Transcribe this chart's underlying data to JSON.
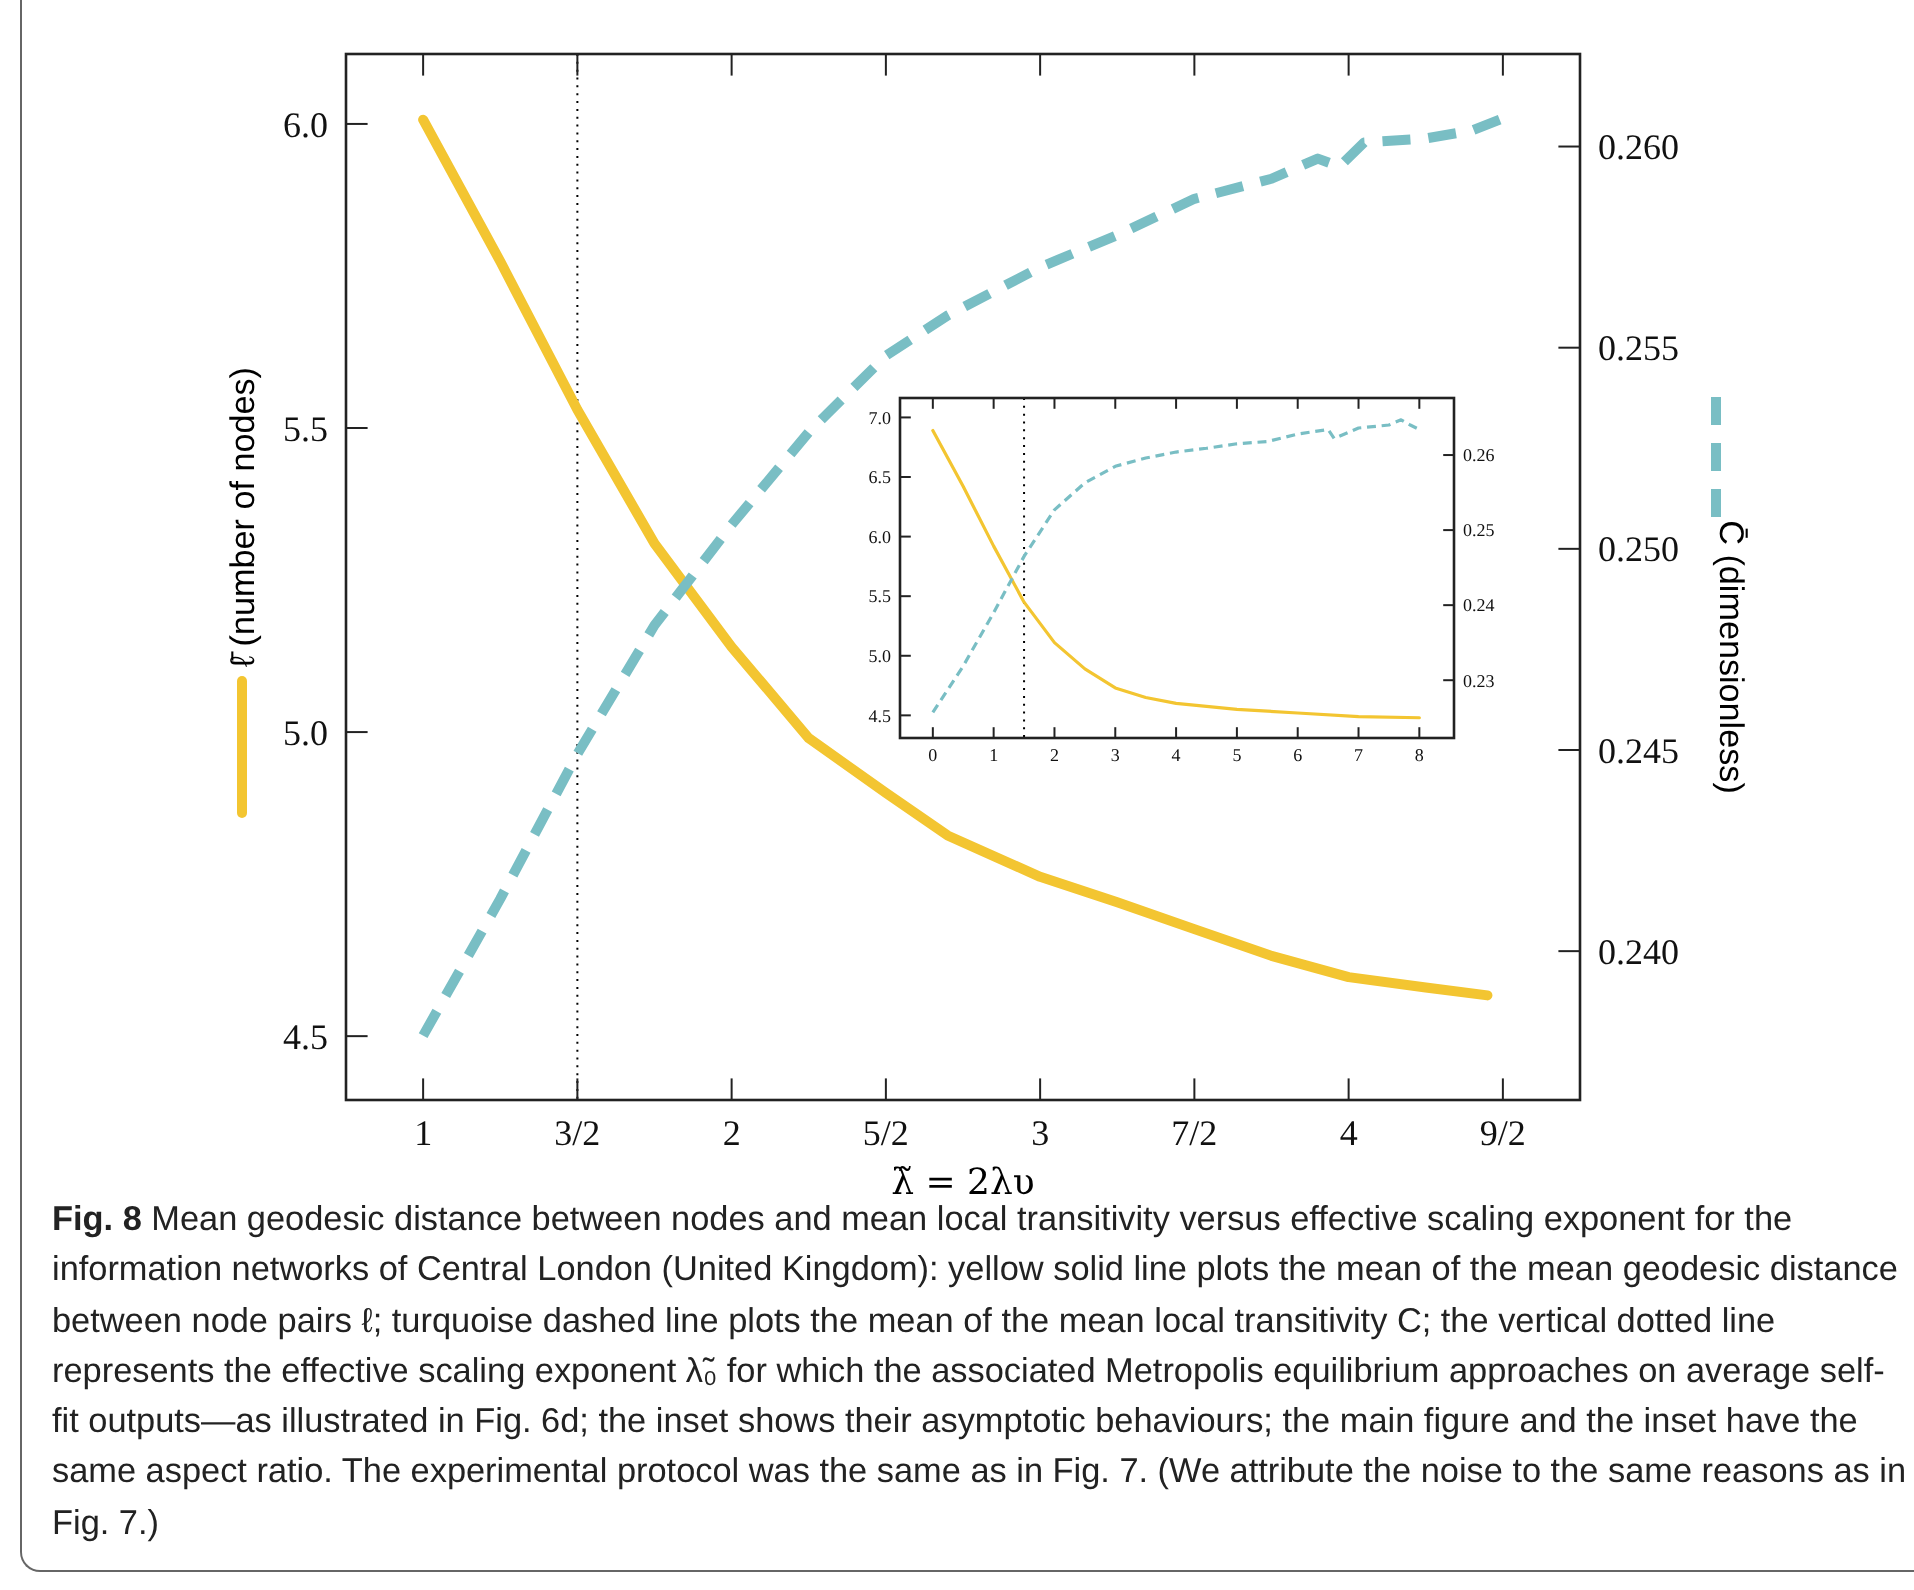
{
  "chart_data": [
    {
      "type": "line",
      "xlabel": "λ̃ = 2λυ",
      "ylabel": "ℓ̄ (number of nodes)",
      "y2label": "C̄ (dimensionless)",
      "xlim": [
        0.75,
        4.75
      ],
      "ylim": [
        4.395,
        6.115
      ],
      "y2lim": [
        0.2363,
        0.2623
      ],
      "xticks": [
        1,
        {
          "value": 1.5,
          "label": "3/2"
        },
        2,
        {
          "value": 2.5,
          "label": "5/2"
        },
        3,
        {
          "value": 3.5,
          "label": "7/2"
        },
        4,
        {
          "value": 4.5,
          "label": "9/2"
        }
      ],
      "yticks": [
        {
          "value": 4.5,
          "label": "4.5"
        },
        {
          "value": 5,
          "label": "5.0"
        },
        {
          "value": 5.5,
          "label": "5.5"
        },
        {
          "value": 6,
          "label": "6.0"
        }
      ],
      "y2ticks": [
        {
          "value": 0.24,
          "label": "0.240"
        },
        {
          "value": 0.245,
          "label": "0.245"
        },
        {
          "value": 0.25,
          "label": "0.250"
        },
        {
          "value": 0.255,
          "label": "0.255"
        },
        {
          "value": 0.26,
          "label": "0.260"
        }
      ],
      "series": [
        {
          "color": "#f3c531",
          "line_style": "solid",
          "x": [
            1,
            1.25,
            1.5,
            1.75,
            2,
            2.25,
            2.5,
            2.7,
            3,
            3.25,
            3.5,
            3.75,
            4,
            4.25,
            4.45
          ],
          "values": [
            6.007,
            5.774,
            5.53,
            5.31,
            5.14,
            4.99,
            4.9,
            4.83,
            4.762,
            4.72,
            4.676,
            4.632,
            4.597,
            4.58,
            4.567
          ]
        },
        {
          "color": "#79bec4",
          "line_style": "dashed",
          "axis": "y2",
          "x": [
            1,
            1.25,
            1.5,
            1.75,
            2,
            2.25,
            2.5,
            2.7,
            2.85,
            3,
            3.25,
            3.5,
            3.75,
            3.9,
            3.97,
            4.05,
            4.25,
            4.4,
            4.5
          ],
          "values": [
            0.2379,
            0.2413,
            0.2449,
            0.2481,
            0.2506,
            0.2529,
            0.2548,
            0.2558,
            0.2564,
            0.257,
            0.2578,
            0.2587,
            0.2592,
            0.2597,
            0.2595,
            0.2601,
            0.2602,
            0.2604,
            0.2607
          ]
        }
      ],
      "ref_lines": [
        {
          "axis": "x",
          "value": 1.5,
          "color": "#000000",
          "line_style": "dotted"
        }
      ],
      "annotations": [
        "Fig. 8 Mean geodesic distance between nodes and mean local transitivity versus effective scaling exponent for the information networks of Central London (United Kingdom): yellow solid line plots the mean of the mean geodesic distance between node pairs ℓ; turquoise dashed line plots the mean of the mean local transitivity C; the vertical dotted line represents the effective scaling exponent λ̃₀ for which the associated Metropolis equilibrium approaches on average self-fit outputs—as illustrated in Fig. 6d; the inset shows their asymptotic behaviours; the main figure and the inset have the same aspect ratio. The experimental protocol was the same as in Fig. 7. (We attribute the noise to the same reasons as in Fig. 7.)"
      ]
    },
    {
      "type": "line",
      "xlim": [
        -0.54,
        8.57
      ],
      "ylim": [
        4.31,
        7.163
      ],
      "y2lim": [
        0.2223,
        0.2676
      ],
      "xticks": [
        0,
        1,
        2,
        3,
        4,
        5,
        6,
        7,
        8
      ],
      "yticks": [
        {
          "value": 4.5,
          "label": "4.5"
        },
        {
          "value": 5,
          "label": "5.0"
        },
        {
          "value": 5.5,
          "label": "5.5"
        },
        {
          "value": 6,
          "label": "6.0"
        },
        {
          "value": 6.5,
          "label": "6.5"
        },
        {
          "value": 7,
          "label": "7.0"
        }
      ],
      "y2ticks": [
        0.23,
        0.24,
        0.25,
        0.26
      ],
      "series": [
        {
          "color": "#f3c531",
          "line_style": "solid",
          "x": [
            0,
            0.5,
            1,
            1.5,
            2,
            2.5,
            3,
            3.5,
            4,
            5,
            6,
            7,
            8
          ],
          "values": [
            6.89,
            6.42,
            5.92,
            5.45,
            5.11,
            4.89,
            4.73,
            4.65,
            4.6,
            4.55,
            4.52,
            4.49,
            4.48
          ]
        },
        {
          "color": "#79bec4",
          "line_style": "dashed",
          "axis": "y2",
          "x": [
            0,
            0.5,
            1,
            1.5,
            2,
            2.5,
            3,
            3.5,
            4,
            4.5,
            5,
            5.5,
            6,
            6.5,
            6.6,
            7,
            7.5,
            7.7,
            7.85,
            8
          ],
          "values": [
            0.2257,
            0.2319,
            0.239,
            0.2465,
            0.2527,
            0.2563,
            0.2585,
            0.2596,
            0.2604,
            0.2609,
            0.2615,
            0.2618,
            0.2628,
            0.2634,
            0.2622,
            0.2636,
            0.264,
            0.2647,
            0.264,
            0.2634
          ]
        }
      ],
      "ref_lines": [
        {
          "axis": "x",
          "value": 1.5,
          "color": "#000000",
          "line_style": "dotted"
        }
      ]
    }
  ]
}
